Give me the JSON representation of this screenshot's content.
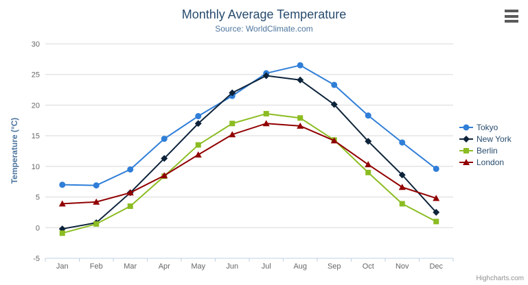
{
  "chart_data": {
    "type": "line",
    "title": "Monthly Average Temperature",
    "subtitle": "Source: WorldClimate.com",
    "xlabel": "",
    "ylabel": "Temperature (°C)",
    "ylim": [
      -5,
      30
    ],
    "yticks": [
      -5,
      0,
      5,
      10,
      15,
      20,
      25,
      30
    ],
    "grid": true,
    "legend_position": "right",
    "categories": [
      "Jan",
      "Feb",
      "Mar",
      "Apr",
      "May",
      "Jun",
      "Jul",
      "Aug",
      "Sep",
      "Oct",
      "Nov",
      "Dec"
    ],
    "series": [
      {
        "name": "Tokyo",
        "color": "#2f7ed8",
        "marker": "circle",
        "values": [
          7.0,
          6.9,
          9.5,
          14.5,
          18.2,
          21.5,
          25.2,
          26.5,
          23.3,
          18.3,
          13.9,
          9.6
        ]
      },
      {
        "name": "New York",
        "color": "#0d233a",
        "marker": "diamond",
        "values": [
          -0.2,
          0.8,
          5.7,
          11.3,
          17.0,
          22.0,
          24.8,
          24.1,
          20.1,
          14.1,
          8.6,
          2.5
        ]
      },
      {
        "name": "Berlin",
        "color": "#8bbc21",
        "marker": "square",
        "values": [
          -0.9,
          0.6,
          3.5,
          8.4,
          13.5,
          17.0,
          18.6,
          17.9,
          14.3,
          9.0,
          3.9,
          1.0
        ]
      },
      {
        "name": "London",
        "color": "#910000",
        "marker": "triangle",
        "values": [
          3.9,
          4.2,
          5.7,
          8.5,
          11.9,
          15.2,
          17.0,
          16.6,
          14.2,
          10.3,
          6.6,
          4.8
        ]
      }
    ],
    "colors": {
      "title": "#274b6d",
      "subtitle": "#4d759e",
      "axis_title": "#4d759e",
      "axis_label": "#666666",
      "grid_line": "#d8d8d8",
      "axis_line": "#c0d0e0",
      "tick": "#c0d0e0",
      "legend_text": "#274b6d",
      "credit_text": "#909090",
      "export_icon": "#5a5a5a",
      "background": "#ffffff"
    }
  },
  "credit": {
    "label": "Highcharts.com"
  },
  "export_menu": {
    "icon": "hamburger-menu-icon"
  }
}
